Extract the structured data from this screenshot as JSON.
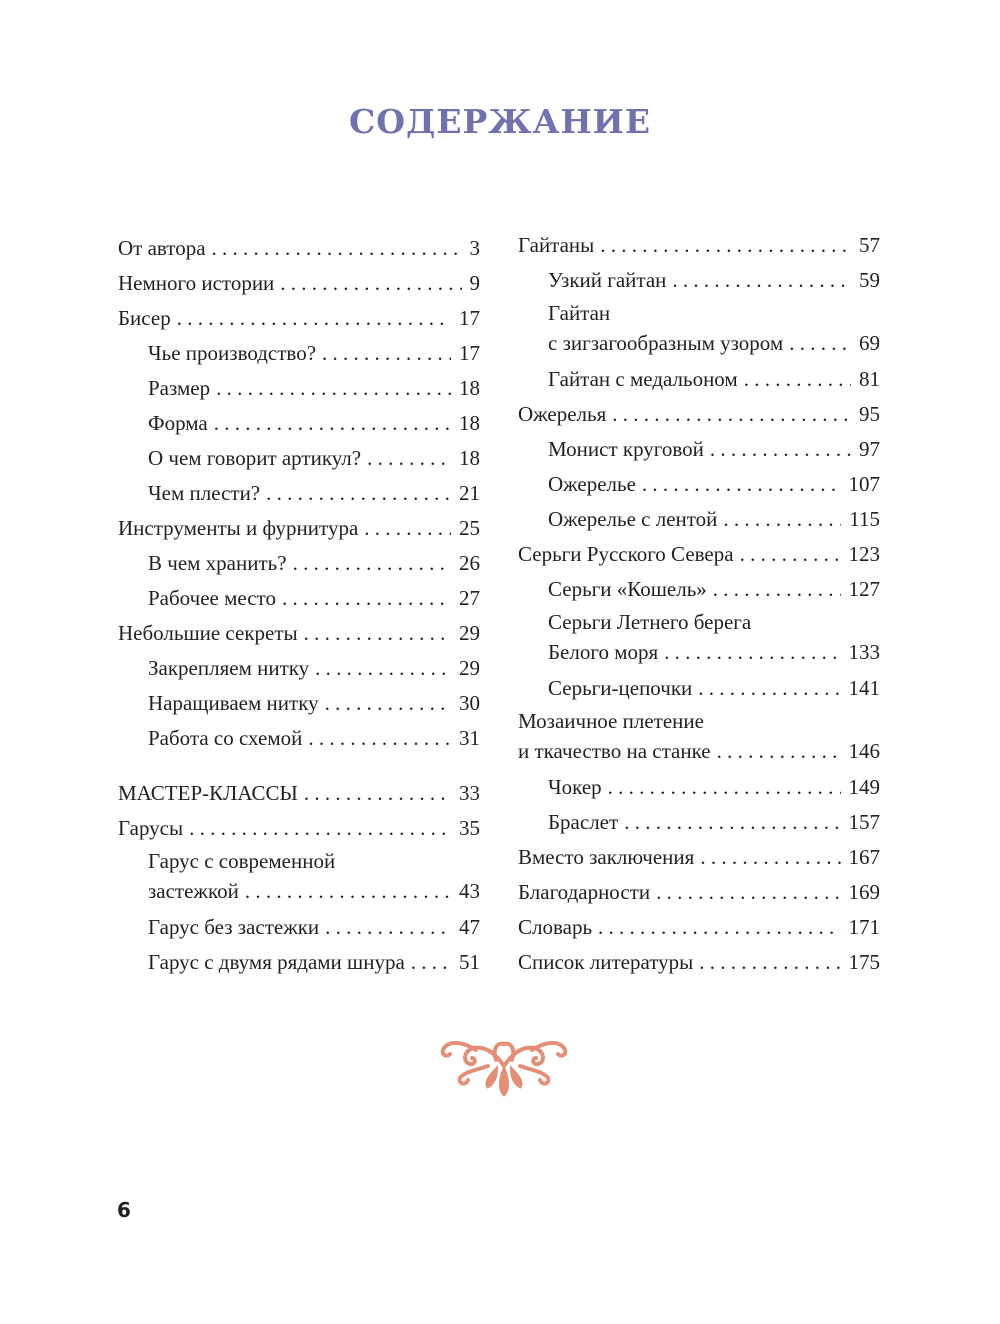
{
  "title": "СОДЕРЖАНИЕ",
  "page_number": "6",
  "ornament_color": "#e38f78",
  "title_color": "#6f72ae",
  "left": [
    {
      "title": "От автора",
      "page": "3",
      "level": 0
    },
    {
      "title": "Немного истории",
      "page": "9",
      "level": 0
    },
    {
      "title": "Бисер",
      "page": "17",
      "level": 0
    },
    {
      "title": "Чье производство?",
      "page": "17",
      "level": 1
    },
    {
      "title": "Размер",
      "page": "18",
      "level": 1
    },
    {
      "title": "Форма",
      "page": "18",
      "level": 1
    },
    {
      "title": "О чем говорит артикул?",
      "page": "18",
      "level": 1
    },
    {
      "title": "Чем плести?",
      "page": "21",
      "level": 1
    },
    {
      "title": "Инструменты и фурнитура",
      "page": "25",
      "level": 0
    },
    {
      "title": "В чем хранить?",
      "page": "26",
      "level": 1
    },
    {
      "title": "Рабочее место",
      "page": "27",
      "level": 1
    },
    {
      "title": "Небольшие секреты",
      "page": "29",
      "level": 0
    },
    {
      "title": "Закрепляем нитку",
      "page": "29",
      "level": 1
    },
    {
      "title": "Наращиваем нитку",
      "page": "30",
      "level": 1
    },
    {
      "title": "Работа со схемой",
      "page": "31",
      "level": 1
    },
    {
      "title": "МАСТЕР-КЛАССЫ",
      "page": "33",
      "level": 0,
      "gap": true
    },
    {
      "title": "Гарусы",
      "page": "35",
      "level": 0
    },
    {
      "title": "Гарус с современной",
      "title2": "застежкой",
      "page": "43",
      "level": 1
    },
    {
      "title": "Гарус без застежки",
      "page": "47",
      "level": 1
    },
    {
      "title": "Гарус с двумя рядами шнура",
      "page": "51",
      "level": 1
    }
  ],
  "right": [
    {
      "title": "Гайтаны",
      "page": "57",
      "level": 0
    },
    {
      "title": "Узкий гайтан",
      "page": "59",
      "level": 1
    },
    {
      "title": "Гайтан",
      "title2": "с зигзагообразным узором",
      "page": "69",
      "level": 1
    },
    {
      "title": "Гайтан с медальоном",
      "page": "81",
      "level": 1
    },
    {
      "title": "Ожерелья",
      "page": "95",
      "level": 0
    },
    {
      "title": "Монист круговой",
      "page": "97",
      "level": 1
    },
    {
      "title": "Ожерелье",
      "page": "107",
      "level": 1
    },
    {
      "title": "Ожерелье с лентой",
      "page": "115",
      "level": 1
    },
    {
      "title": "Серьги Русского Севера",
      "page": "123",
      "level": 0
    },
    {
      "title": "Серьги «Кошель»",
      "page": "127",
      "level": 1
    },
    {
      "title": "Серьги Летнего берега",
      "title2": "Белого моря",
      "page": "133",
      "level": 1
    },
    {
      "title": "Серьги-цепочки",
      "page": "141",
      "level": 1
    },
    {
      "title": "Мозаичное плетение",
      "title2": "и ткачество на станке",
      "page": "146",
      "level": 0
    },
    {
      "title": "Чокер",
      "page": "149",
      "level": 1
    },
    {
      "title": "Браслет",
      "page": "157",
      "level": 1
    },
    {
      "title": "Вместо заключения",
      "page": "167",
      "level": 0
    },
    {
      "title": "Благодарности",
      "page": "169",
      "level": 0
    },
    {
      "title": "Словарь",
      "page": "171",
      "level": 0
    },
    {
      "title": "Список литературы",
      "page": "175",
      "level": 0
    }
  ]
}
